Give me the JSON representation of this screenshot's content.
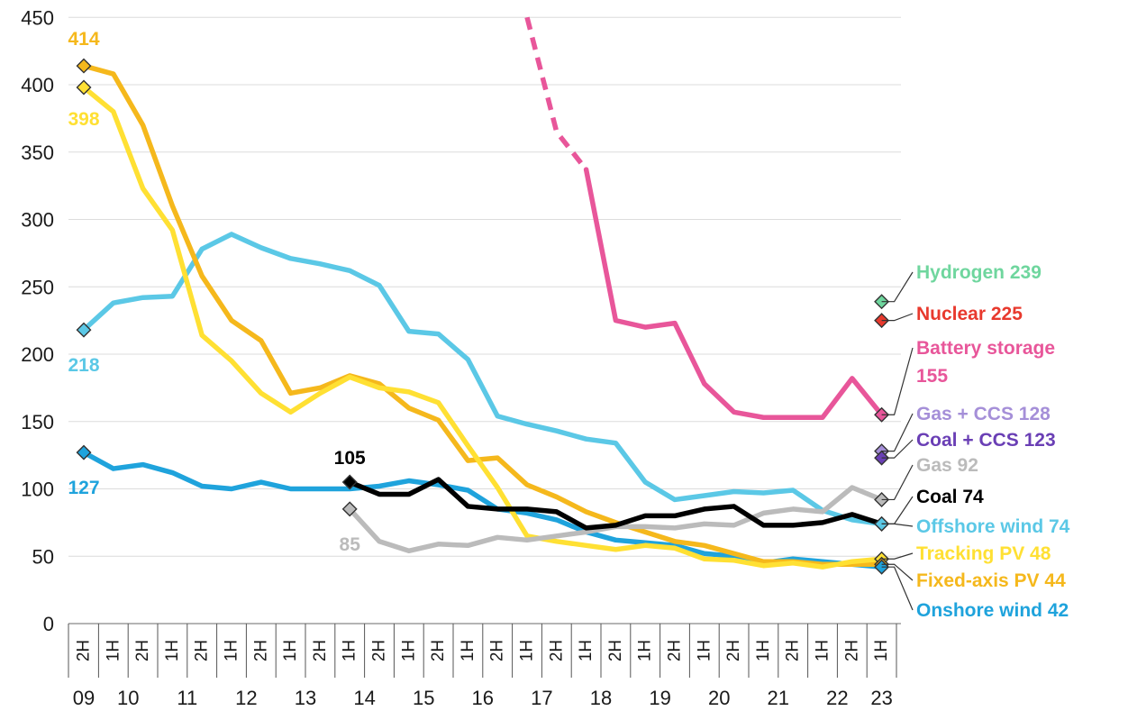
{
  "chart_data": {
    "type": "line",
    "title": "",
    "xlabel": "",
    "ylabel": "",
    "ylim": [
      0,
      450
    ],
    "yticks": [
      0,
      50,
      100,
      150,
      200,
      250,
      300,
      350,
      400,
      450
    ],
    "grid": "horizontal",
    "periods": [
      "2H",
      "1H",
      "2H",
      "1H",
      "2H",
      "1H",
      "2H",
      "1H",
      "2H",
      "1H",
      "2H",
      "1H",
      "2H",
      "1H",
      "2H",
      "1H",
      "2H",
      "1H",
      "2H",
      "1H",
      "2H",
      "1H",
      "2H",
      "1H",
      "2H",
      "1H",
      "2H",
      "1H",
      "2H",
      " 1H",
      "2H"
    ],
    "years": [
      {
        "label": "09",
        "start": 0,
        "end": 0
      },
      {
        "label": "10",
        "start": 1,
        "end": 2
      },
      {
        "label": "11",
        "start": 3,
        "end": 4
      },
      {
        "label": "12",
        "start": 5,
        "end": 6
      },
      {
        "label": "13",
        "start": 7,
        "end": 8
      },
      {
        "label": "14",
        "start": 9,
        "end": 10
      },
      {
        "label": "15",
        "start": 11,
        "end": 12
      },
      {
        "label": "16",
        "start": 13,
        "end": 14
      },
      {
        "label": "17",
        "start": 15,
        "end": 16
      },
      {
        "label": "18",
        "start": 17,
        "end": 18
      },
      {
        "label": "19",
        "start": 19,
        "end": 20
      },
      {
        "label": "20",
        "start": 21,
        "end": 22
      },
      {
        "label": "21",
        "start": 23,
        "end": 24
      },
      {
        "label": "22",
        "start": 25,
        "end": 26
      },
      {
        "label": "23",
        "start": 27,
        "end": 27
      }
    ],
    "series": [
      {
        "name": "Offshore wind",
        "color": "#5bc8e6",
        "x": [
          0,
          1,
          2,
          3,
          4,
          5,
          6,
          7,
          8,
          9,
          10,
          11,
          12,
          13,
          14,
          15,
          16,
          17,
          18,
          19,
          20,
          21,
          22,
          23,
          24,
          25,
          26,
          27
        ],
        "values": [
          218,
          238,
          242,
          243,
          278,
          289,
          279,
          271,
          267,
          262,
          251,
          217,
          215,
          196,
          154,
          148,
          143,
          137,
          134,
          105,
          92,
          95,
          98,
          97,
          99,
          84,
          77,
          74
        ]
      },
      {
        "name": "Onshore wind",
        "color": "#1fa3dc",
        "x": [
          0,
          1,
          2,
          3,
          4,
          5,
          6,
          7,
          8,
          9,
          10,
          11,
          12,
          13,
          14,
          15,
          16,
          17,
          18,
          19,
          20,
          21,
          22,
          23,
          24,
          25,
          26,
          27
        ],
        "values": [
          127,
          115,
          118,
          112,
          102,
          100,
          105,
          100,
          100,
          100,
          102,
          106,
          103,
          99,
          85,
          82,
          77,
          68,
          62,
          60,
          58,
          52,
          50,
          45,
          48,
          46,
          44,
          42
        ]
      },
      {
        "name": "Fixed-axis PV",
        "color": "#f5b81c",
        "x": [
          0,
          1,
          2,
          3,
          4,
          5,
          6,
          7,
          8,
          9,
          10,
          11,
          12,
          13,
          14,
          15,
          16,
          17,
          18,
          19,
          20,
          21,
          22,
          23,
          24,
          25,
          26,
          27
        ],
        "values": [
          414,
          408,
          370,
          310,
          258,
          225,
          210,
          171,
          175,
          184,
          178,
          160,
          151,
          121,
          123,
          103,
          94,
          83,
          75,
          68,
          61,
          58,
          52,
          46,
          46,
          44,
          44,
          44
        ]
      },
      {
        "name": "Tracking PV",
        "color": "#ffe033",
        "x": [
          0,
          1,
          2,
          3,
          4,
          5,
          6,
          7,
          8,
          9,
          10,
          11,
          12,
          13,
          14,
          15,
          16,
          17,
          18,
          19,
          20,
          21,
          22,
          23,
          24,
          25,
          26,
          27
        ],
        "values": [
          398,
          380,
          323,
          292,
          214,
          195,
          171,
          157,
          171,
          183,
          175,
          172,
          164,
          132,
          101,
          65,
          61,
          58,
          55,
          58,
          56,
          48,
          47,
          43,
          45,
          42,
          46,
          48
        ]
      },
      {
        "name": "Gas",
        "color": "#bbbbbb",
        "x": [
          9,
          10,
          11,
          12,
          13,
          14,
          15,
          16,
          17,
          18,
          19,
          20,
          21,
          22,
          23,
          24,
          25,
          26,
          27
        ],
        "values": [
          85,
          61,
          54,
          59,
          58,
          64,
          62,
          65,
          68,
          72,
          72,
          71,
          74,
          73,
          82,
          85,
          83,
          101,
          92
        ]
      },
      {
        "name": "Coal",
        "color": "#000000",
        "x": [
          9,
          10,
          11,
          12,
          13,
          14,
          15,
          16,
          17,
          18,
          19,
          20,
          21,
          22,
          23,
          24,
          25,
          26,
          27
        ],
        "values": [
          105,
          96,
          96,
          107,
          87,
          85,
          85,
          83,
          71,
          73,
          80,
          80,
          85,
          87,
          73,
          73,
          75,
          81,
          74
        ]
      },
      {
        "name": "Battery storage",
        "color": "#e8569a",
        "x": [
          15,
          16,
          17,
          18,
          19,
          20,
          21,
          22,
          23,
          24,
          25,
          26,
          27
        ],
        "values": [
          450,
          365,
          337,
          225,
          220,
          223,
          178,
          157,
          153,
          153,
          153,
          182,
          155
        ],
        "dashed_until_index": 2
      }
    ],
    "endpoints": [
      {
        "name": "Hydrogen",
        "value": 239,
        "color": "#6fd69e",
        "label": "Hydrogen",
        "value_label": "239"
      },
      {
        "name": "Nuclear",
        "value": 225,
        "color": "#e8392d",
        "label": "Nuclear",
        "value_label": "225"
      },
      {
        "name": "Battery storage",
        "value": 155,
        "color": "#e8569a",
        "label": "Battery storage",
        "value_label": "155"
      },
      {
        "name": "Gas + CCS",
        "value": 128,
        "color": "#a58fd8",
        "label": "Gas + CCS",
        "value_label": "128"
      },
      {
        "name": "Coal + CCS",
        "value": 123,
        "color": "#6a3fb5",
        "label": "Coal + CCS",
        "value_label": "123"
      },
      {
        "name": "Gas",
        "value": 92,
        "color": "#bbbbbb",
        "label": "Gas",
        "value_label": "92"
      },
      {
        "name": "Coal",
        "value": 74,
        "color": "#000000",
        "label": "Coal",
        "value_label": "74"
      },
      {
        "name": "Offshore wind",
        "value": 74,
        "color": "#5bc8e6",
        "label": "Offshore wind",
        "value_label": "74"
      },
      {
        "name": "Tracking PV",
        "value": 48,
        "color": "#ffe033",
        "label": "Tracking PV",
        "value_label": "48"
      },
      {
        "name": "Fixed-axis PV",
        "value": 44,
        "color": "#f5b81c",
        "label": "Fixed-axis PV",
        "value_label": "44"
      },
      {
        "name": "Onshore wind",
        "value": 42,
        "color": "#1fa3dc",
        "label": "Onshore wind",
        "value_label": "42"
      }
    ],
    "start_labels": [
      {
        "series": "Fixed-axis PV",
        "text": "414",
        "color": "#f5b81c"
      },
      {
        "series": "Tracking PV",
        "text": "398",
        "color": "#ffe033"
      },
      {
        "series": "Offshore wind",
        "text": "218",
        "color": "#5bc8e6"
      },
      {
        "series": "Onshore wind",
        "text": "127",
        "color": "#1fa3dc"
      },
      {
        "series": "Coal",
        "text": "105",
        "color": "#000000"
      },
      {
        "series": "Gas",
        "text": "85",
        "color": "#bbbbbb"
      }
    ]
  }
}
